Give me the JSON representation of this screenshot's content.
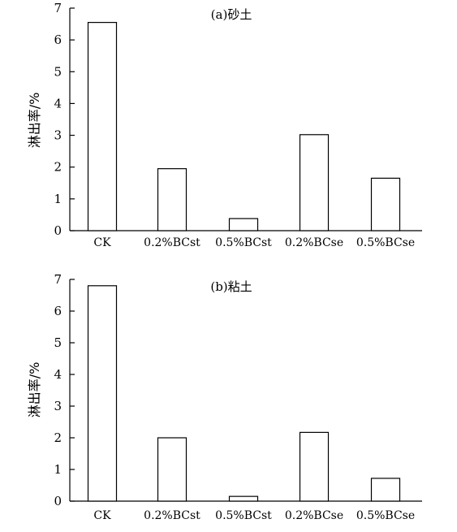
{
  "chart_data": [
    {
      "type": "bar",
      "title": "(a)砂土",
      "ylabel": "淋出率/%",
      "xlabel": "",
      "categories": [
        "CK",
        "0.2%BCst",
        "0.5%BCst",
        "0.2%BCse",
        "0.5%BCse"
      ],
      "values": [
        6.55,
        1.95,
        0.38,
        3.02,
        1.65
      ],
      "ylim": [
        0,
        7
      ],
      "yticks": [
        "0",
        "1",
        "2",
        "3",
        "4",
        "5",
        "6",
        "7"
      ],
      "grid": false,
      "bar_fill": "#ffffff",
      "bar_stroke": "#000000"
    },
    {
      "type": "bar",
      "title": "(b)粘土",
      "ylabel": "淋出率/%",
      "xlabel": "",
      "categories": [
        "CK",
        "0.2%BCst",
        "0.5%BCst",
        "0.2%BCse",
        "0.5%BCse"
      ],
      "values": [
        6.8,
        2.0,
        0.15,
        2.17,
        0.72
      ],
      "ylim": [
        0,
        7
      ],
      "yticks": [
        "0",
        "1",
        "2",
        "3",
        "4",
        "5",
        "6",
        "7"
      ],
      "grid": false,
      "bar_fill": "#ffffff",
      "bar_stroke": "#000000"
    }
  ]
}
